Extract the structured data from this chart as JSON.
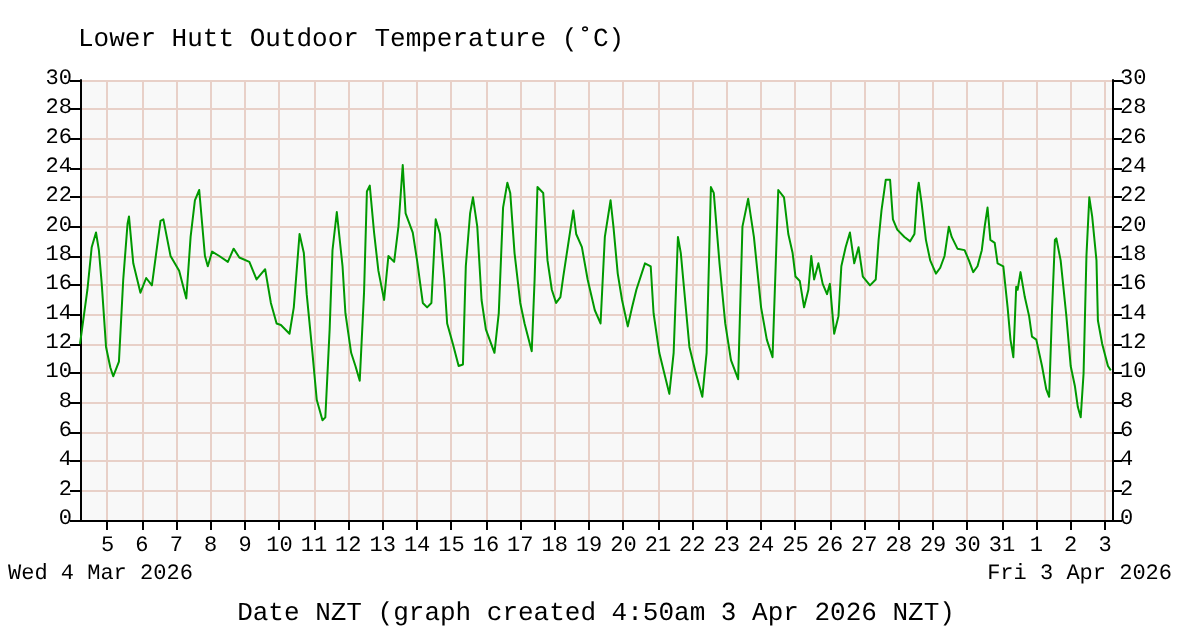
{
  "chart_data": {
    "type": "line",
    "title": "Lower Hutt Outdoor Temperature (˚C)",
    "xlabel": "Date NZT (graph created 4:50am 3 Apr 2026 NZT)",
    "annotations": [
      "Wed 4 Mar 2026",
      "Fri 3 Apr 2026"
    ],
    "x": [
      "2026-03-04T04:50",
      "2026-03-04T10:00",
      "2026-03-04T13:00",
      "2026-03-04T16:00",
      "2026-03-04T18:00",
      "2026-03-04T20:00",
      "2026-03-04T23:00",
      "2026-03-05T02:00",
      "2026-03-05T04:00",
      "2026-03-05T08:00",
      "2026-03-05T11:00",
      "2026-03-05T14:00",
      "2026-03-05T15:00",
      "2026-03-05T18:00",
      "2026-03-05T23:00",
      "2026-03-06T03:00",
      "2026-03-06T07:00",
      "2026-03-06T13:00",
      "2026-03-06T15:00",
      "2026-03-06T20:00",
      "2026-03-07T02:00",
      "2026-03-07T07:00",
      "2026-03-07T10:00",
      "2026-03-07T13:00",
      "2026-03-07T16:00",
      "2026-03-07T20:00",
      "2026-03-07T22:00",
      "2026-03-08T01:00",
      "2026-03-08T06:00",
      "2026-03-08T12:00",
      "2026-03-08T16:00",
      "2026-03-08T20:00",
      "2026-03-09T03:00",
      "2026-03-09T08:00",
      "2026-03-09T14:00",
      "2026-03-09T18:00",
      "2026-03-09T22:00",
      "2026-03-10T01:00",
      "2026-03-10T07:00",
      "2026-03-10T10:00",
      "2026-03-10T14:00",
      "2026-03-10T17:00",
      "2026-03-10T19:00",
      "2026-03-10T23:00",
      "2026-03-11T02:00",
      "2026-03-11T06:00",
      "2026-03-11T08:00",
      "2026-03-11T11:00",
      "2026-03-11T13:00",
      "2026-03-11T16:00",
      "2026-03-11T20:00",
      "2026-03-11T22:00",
      "2026-03-12T02:00",
      "2026-03-12T05:00",
      "2026-03-12T08:00",
      "2026-03-12T11:00",
      "2026-03-12T13:00",
      "2026-03-12T15:00",
      "2026-03-12T18:00",
      "2026-03-12T21:00",
      "2026-03-13T01:00",
      "2026-03-13T04:00",
      "2026-03-13T08:00",
      "2026-03-13T11:00",
      "2026-03-13T14:00",
      "2026-03-13T16:00",
      "2026-03-13T21:00",
      "2026-03-14T00:00",
      "2026-03-14T04:00",
      "2026-03-14T07:00",
      "2026-03-14T10:00",
      "2026-03-14T13:00",
      "2026-03-14T16:00",
      "2026-03-14T19:00",
      "2026-03-14T21:00",
      "2026-03-15T01:00",
      "2026-03-15T05:00",
      "2026-03-15T08:00",
      "2026-03-15T10:00",
      "2026-03-15T13:00",
      "2026-03-15T15:00",
      "2026-03-15T18:00",
      "2026-03-15T21:00",
      "2026-03-16T00:00",
      "2026-03-16T06:00",
      "2026-03-16T09:00",
      "2026-03-16T12:00",
      "2026-03-16T15:00",
      "2026-03-16T17:00",
      "2026-03-16T20:00",
      "2026-03-17T00:00",
      "2026-03-17T03:00",
      "2026-03-17T08:00",
      "2026-03-17T10:00",
      "2026-03-17T12:00",
      "2026-03-17T16:00",
      "2026-03-17T19:00",
      "2026-03-17T22:00",
      "2026-03-18T01:00",
      "2026-03-18T04:00",
      "2026-03-18T06:00",
      "2026-03-18T13:00",
      "2026-03-18T15:00",
      "2026-03-18T19:00",
      "2026-03-18T23:00",
      "2026-03-19T04:00",
      "2026-03-19T08:00",
      "2026-03-19T11:00",
      "2026-03-19T15:00",
      "2026-03-19T17:00",
      "2026-03-19T20:00",
      "2026-03-19T23:00",
      "2026-03-20T03:00",
      "2026-03-20T06:00",
      "2026-03-20T09:00",
      "2026-03-20T15:00",
      "2026-03-20T19:00",
      "2026-03-20T21:00",
      "2026-03-21T01:00",
      "2026-03-21T04:00",
      "2026-03-21T08:00",
      "2026-03-21T11:00",
      "2026-03-21T14:00",
      "2026-03-21T16:00",
      "2026-03-21T19:00",
      "2026-03-21T22:00",
      "2026-03-22T02:00",
      "2026-03-22T07:00",
      "2026-03-22T10:00",
      "2026-03-22T13:00",
      "2026-03-22T15:00",
      "2026-03-22T19:00",
      "2026-03-22T23:00",
      "2026-03-23T03:00",
      "2026-03-23T08:00",
      "2026-03-23T11:00",
      "2026-03-23T15:00",
      "2026-03-23T19:00",
      "2026-03-24T00:00",
      "2026-03-24T04:00",
      "2026-03-24T08:00",
      "2026-03-24T12:00",
      "2026-03-24T16:00",
      "2026-03-24T19:00",
      "2026-03-24T22:00",
      "2026-03-25T00:00",
      "2026-03-25T03:00",
      "2026-03-25T06:00",
      "2026-03-25T09:00",
      "2026-03-25T11:00",
      "2026-03-25T13:00",
      "2026-03-25T16:00",
      "2026-03-25T19:00",
      "2026-03-25T22:00",
      "2026-03-26T00:00",
      "2026-03-26T03:00",
      "2026-03-26T06:00",
      "2026-03-26T08:00",
      "2026-03-26T11:00",
      "2026-03-26T14:00",
      "2026-03-26T17:00",
      "2026-03-26T20:00",
      "2026-03-26T23:00",
      "2026-03-27T04:00",
      "2026-03-27T08:00",
      "2026-03-27T10:00",
      "2026-03-27T12:00",
      "2026-03-27T15:00",
      "2026-03-27T18:00",
      "2026-03-27T20:00",
      "2026-03-27T23:00",
      "2026-03-28T04:00",
      "2026-03-28T08:00",
      "2026-03-28T11:00",
      "2026-03-28T13:00",
      "2026-03-28T14:00",
      "2026-03-28T16:00",
      "2026-03-28T19:00",
      "2026-03-28T22:00",
      "2026-03-29T02:00",
      "2026-03-29T05:00",
      "2026-03-29T08:00",
      "2026-03-29T11:00",
      "2026-03-29T13:00",
      "2026-03-29T17:00",
      "2026-03-29T22:00",
      "2026-03-30T01:00",
      "2026-03-30T04:00",
      "2026-03-30T07:00",
      "2026-03-30T10:00",
      "2026-03-30T12:00",
      "2026-03-30T14:00",
      "2026-03-30T16:00",
      "2026-03-30T19:00",
      "2026-03-30T21:00",
      "2026-03-31T01:00",
      "2026-03-31T04:00",
      "2026-03-31T06:00",
      "2026-03-31T08:00",
      "2026-03-31T10:00",
      "2026-03-31T11:00",
      "2026-03-31T13:00",
      "2026-03-31T16:00",
      "2026-03-31T19:00",
      "2026-03-31T21:00",
      "2026-04-01T00:00",
      "2026-04-01T04:00",
      "2026-04-01T07:00",
      "2026-04-01T09:00",
      "2026-04-01T11:00",
      "2026-04-01T13:00",
      "2026-04-01T14:00",
      "2026-04-01T17:00",
      "2026-04-01T21:00",
      "2026-04-02T00:00",
      "2026-04-02T03:00",
      "2026-04-02T05:00",
      "2026-04-02T07:00",
      "2026-04-02T09:00",
      "2026-04-02T11:00",
      "2026-04-02T13:00",
      "2026-04-02T15:00",
      "2026-04-02T18:00",
      "2026-04-02T19:00",
      "2026-04-02T22:00",
      "2026-04-03T02:00",
      "2026-04-03T04:00"
    ],
    "series": [
      {
        "color": "#009900",
        "values": [
          12.0,
          15.7,
          18.6,
          19.6,
          18.4,
          16.1,
          11.8,
          10.4,
          9.8,
          10.8,
          16.4,
          20.2,
          20.7,
          17.5,
          15.5,
          16.5,
          16.0,
          20.4,
          20.5,
          18.0,
          17.0,
          15.1,
          19.3,
          21.8,
          22.5,
          18.0,
          17.3,
          18.3,
          18.0,
          17.6,
          18.5,
          17.9,
          17.6,
          16.4,
          17.1,
          14.8,
          13.4,
          13.3,
          12.7,
          14.5,
          19.5,
          18.2,
          15.4,
          11.4,
          8.2,
          6.8,
          7.0,
          13.0,
          18.4,
          21.0,
          17.3,
          14.1,
          11.4,
          10.5,
          9.5,
          15.5,
          22.4,
          22.8,
          19.6,
          17.0,
          15.0,
          18.0,
          17.6,
          20.0,
          24.2,
          20.9,
          19.6,
          17.7,
          14.8,
          14.5,
          14.8,
          20.5,
          19.5,
          16.4,
          13.4,
          12.0,
          10.5,
          10.6,
          17.3,
          20.9,
          22.0,
          20.0,
          15.0,
          13.0,
          11.4,
          14.1,
          21.3,
          23.0,
          22.3,
          18.2,
          14.8,
          13.4,
          11.5,
          16.4,
          22.7,
          22.3,
          17.7,
          15.7,
          14.8,
          15.2,
          16.6,
          21.1,
          19.5,
          18.6,
          16.4,
          14.3,
          13.4,
          19.3,
          21.8,
          20.0,
          16.8,
          15.0,
          13.2,
          14.5,
          15.7,
          17.5,
          17.3,
          14.1,
          11.4,
          10.2,
          8.6,
          11.4,
          19.3,
          18.2,
          15.0,
          11.8,
          10.2,
          8.4,
          11.4,
          22.7,
          22.3,
          17.5,
          13.4,
          10.9,
          9.6,
          20.0,
          21.9,
          19.3,
          14.5,
          12.3,
          11.1,
          22.5,
          22.0,
          19.5,
          18.2,
          16.6,
          16.3,
          14.5,
          15.7,
          18.0,
          16.4,
          17.5,
          16.1,
          15.4,
          16.1,
          12.7,
          13.9,
          17.3,
          18.6,
          19.6,
          17.5,
          18.6,
          16.6,
          16.0,
          16.4,
          19.1,
          21.1,
          23.2,
          23.2,
          20.5,
          19.8,
          19.3,
          19.0,
          19.5,
          22.3,
          23.0,
          21.6,
          19.1,
          17.7,
          16.8,
          17.2,
          18.0,
          20.0,
          19.3,
          18.5,
          18.4,
          17.7,
          16.9,
          17.3,
          18.4,
          20.0,
          21.3,
          19.1,
          18.9,
          17.5,
          17.3,
          14.5,
          12.3,
          11.1,
          15.9,
          15.7,
          16.9,
          15.2,
          13.9,
          12.5,
          12.3,
          10.5,
          8.9,
          8.4,
          14.3,
          19.1,
          19.2,
          17.7,
          13.9,
          10.5,
          9.1,
          7.7,
          7.0,
          10.0,
          18.0,
          22.0,
          20.7,
          17.7,
          13.6,
          12.0,
          10.5,
          10.2
        ]
      }
    ],
    "xlim": [
      "2026-03-04T04:50",
      "2026-04-03T04:50"
    ],
    "xticks": [
      {
        "value": "2026-03-05",
        "label": "5"
      },
      {
        "value": "2026-03-06",
        "label": "6"
      },
      {
        "value": "2026-03-07",
        "label": "7"
      },
      {
        "value": "2026-03-08",
        "label": "8"
      },
      {
        "value": "2026-03-09",
        "label": "9"
      },
      {
        "value": "2026-03-10",
        "label": "10"
      },
      {
        "value": "2026-03-11",
        "label": "11"
      },
      {
        "value": "2026-03-12",
        "label": "12"
      },
      {
        "value": "2026-03-13",
        "label": "13"
      },
      {
        "value": "2026-03-14",
        "label": "14"
      },
      {
        "value": "2026-03-15",
        "label": "15"
      },
      {
        "value": "2026-03-16",
        "label": "16"
      },
      {
        "value": "2026-03-17",
        "label": "17"
      },
      {
        "value": "2026-03-18",
        "label": "18"
      },
      {
        "value": "2026-03-19",
        "label": "19"
      },
      {
        "value": "2026-03-20",
        "label": "20"
      },
      {
        "value": "2026-03-21",
        "label": "21"
      },
      {
        "value": "2026-03-22",
        "label": "22"
      },
      {
        "value": "2026-03-23",
        "label": "23"
      },
      {
        "value": "2026-03-24",
        "label": "24"
      },
      {
        "value": "2026-03-25",
        "label": "25"
      },
      {
        "value": "2026-03-26",
        "label": "26"
      },
      {
        "value": "2026-03-27",
        "label": "27"
      },
      {
        "value": "2026-03-28",
        "label": "28"
      },
      {
        "value": "2026-03-29",
        "label": "29"
      },
      {
        "value": "2026-03-30",
        "label": "30"
      },
      {
        "value": "2026-03-31",
        "label": "31"
      },
      {
        "value": "2026-04-01",
        "label": "1"
      },
      {
        "value": "2026-04-02",
        "label": "2"
      },
      {
        "value": "2026-04-03",
        "label": "3"
      }
    ],
    "ylim": [
      0,
      30
    ],
    "yticks": [
      0,
      2,
      4,
      6,
      8,
      10,
      12,
      14,
      16,
      18,
      20,
      22,
      24,
      26,
      28,
      30
    ],
    "y2lim": [
      0,
      30
    ],
    "y2ticks": [
      0,
      2,
      4,
      6,
      8,
      10,
      12,
      14,
      16,
      18,
      20,
      22,
      24,
      26,
      28,
      30
    ],
    "grid": true,
    "marker": "none",
    "line_style": "solid"
  }
}
